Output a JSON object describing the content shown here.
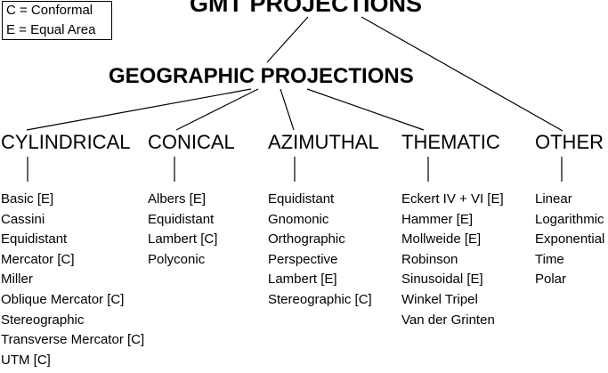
{
  "legend": {
    "line1": "C = Conformal",
    "line2": "E = Equal Area"
  },
  "title": "GMT PROJECTIONS",
  "subtitle": "GEOGRAPHIC PROJECTIONS",
  "categories": {
    "cylindrical": {
      "label": "CYLINDRICAL",
      "items": [
        "Basic [E]",
        "Cassini",
        "Equidistant",
        "Mercator [C]",
        "Miller",
        "Oblique Mercator [C]",
        "Stereographic",
        "Transverse Mercator [C]",
        "UTM [C]"
      ]
    },
    "conical": {
      "label": "CONICAL",
      "items": [
        "Albers [E]",
        "Equidistant",
        "Lambert [C]",
        "Polyconic"
      ]
    },
    "azimuthal": {
      "label": "AZIMUTHAL",
      "items": [
        "Equidistant",
        "Gnomonic",
        "Orthographic",
        "Perspective",
        "Lambert [E]",
        "Stereographic [C]"
      ]
    },
    "thematic": {
      "label": "THEMATIC",
      "items": [
        "Eckert IV + VI [E]",
        "Hammer [E]",
        "Mollweide [E]",
        "Robinson",
        "Sinusoidal [E]",
        "Winkel Tripel",
        "Van der Grinten"
      ]
    },
    "other": {
      "label": "OTHER",
      "items": [
        "Linear",
        "Logarithmic",
        "Exponential",
        "Time",
        "Polar"
      ]
    }
  }
}
